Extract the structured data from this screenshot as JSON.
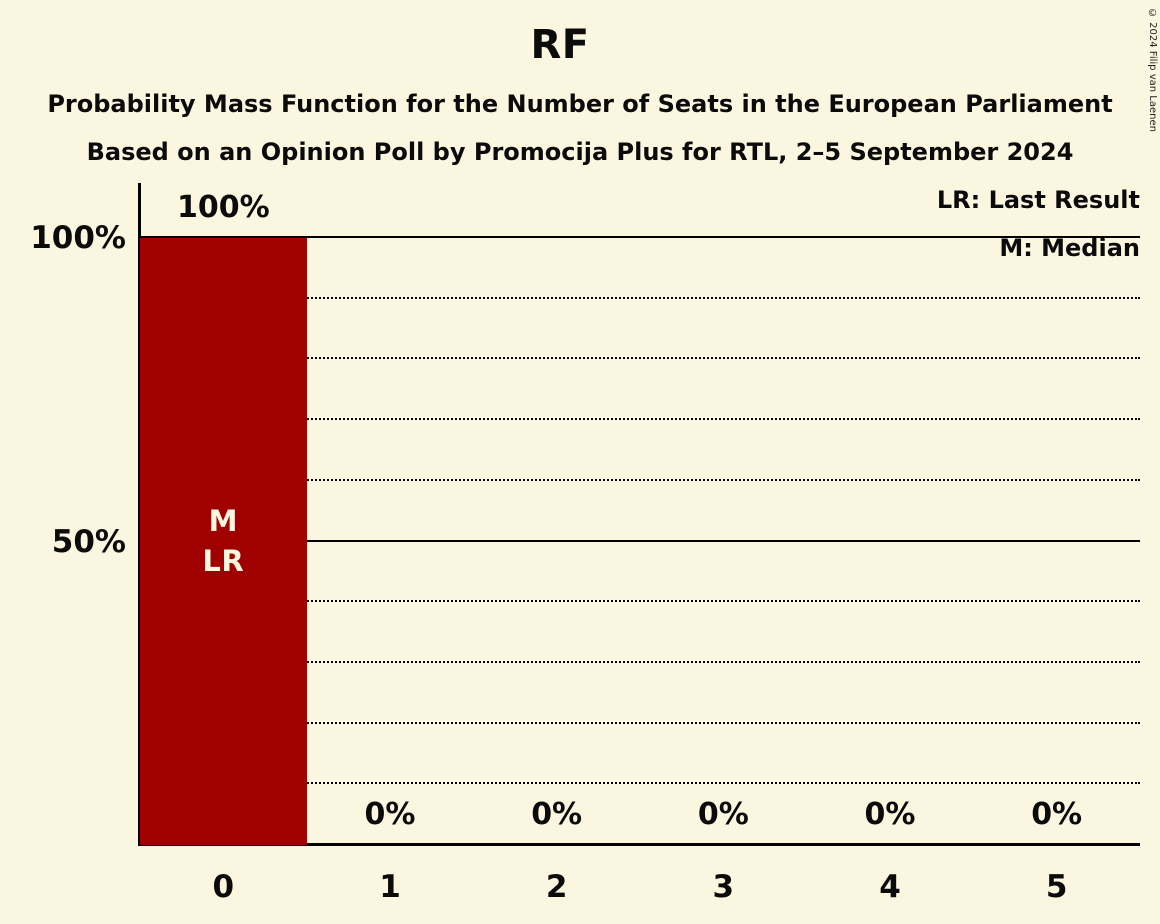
{
  "page": {
    "background": "#FBF6DF",
    "copyright": "© 2024 Filip van Laenen"
  },
  "header": {
    "title": "RF",
    "subtitle1": "Probability Mass Function for the Number of Seats in the European Parliament",
    "subtitle2": "Based on an Opinion Poll by Promocija Plus for RTL, 2–5 September 2024"
  },
  "legend": {
    "lr_label": "LR: Last Result",
    "m_label": "M: Median"
  },
  "chart_data": {
    "type": "bar",
    "title": "RF",
    "categories": [
      "0",
      "1",
      "2",
      "3",
      "4",
      "5"
    ],
    "values": [
      100,
      0,
      0,
      0,
      0,
      0
    ],
    "value_labels": [
      "100%",
      "0%",
      "0%",
      "0%",
      "0%",
      "0%"
    ],
    "xlabel": "",
    "ylabel": "",
    "ylim": [
      0,
      100
    ],
    "bar_color": "#A00000",
    "bar_label_color": "#FBF6DF",
    "axis_color": "#000000",
    "y_axis_labels": [
      {
        "pct": 100,
        "label": "100%"
      },
      {
        "pct": 50,
        "label": "50%"
      }
    ],
    "gridlines": {
      "solid": [
        100,
        50
      ],
      "dotted": [
        90,
        80,
        70,
        60,
        40,
        30,
        20,
        10
      ]
    },
    "annotations": [
      {
        "category_index": 0,
        "lines": [
          "M",
          "LR"
        ]
      }
    ],
    "legend_position": "top-right",
    "grid": "horizontal-only"
  }
}
